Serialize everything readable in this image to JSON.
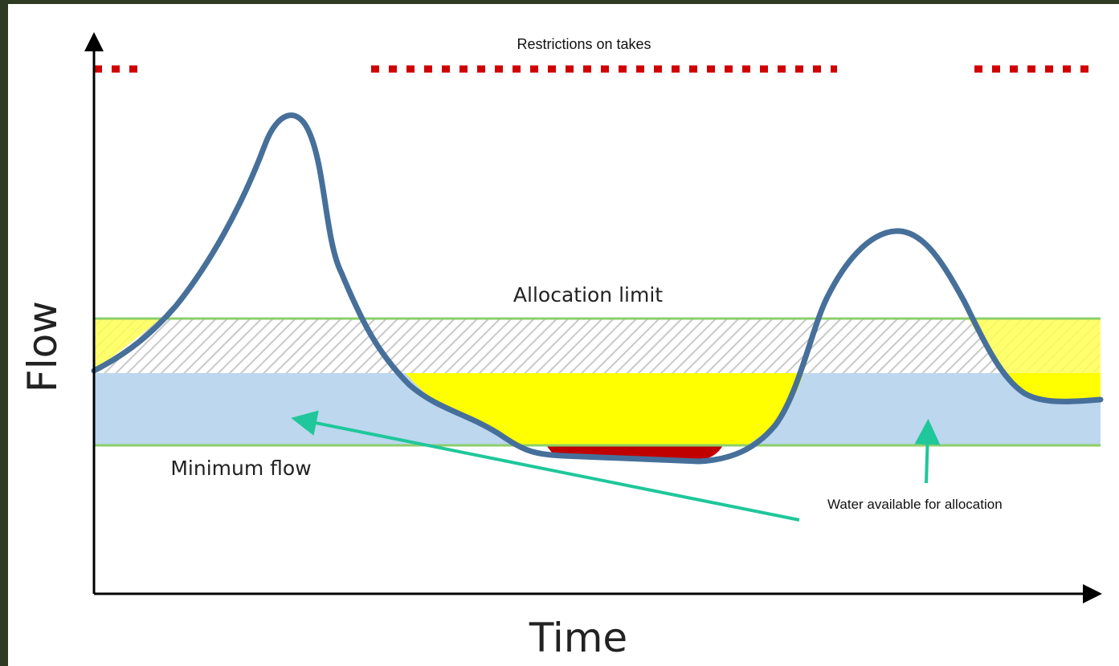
{
  "header": {
    "title": "Restrictions on takes"
  },
  "labels": {
    "allocation_limit": "Allocation limit",
    "minimum_flow": "Minimum flow",
    "y_axis": "Flow",
    "x_axis": "Time"
  },
  "annotation": {
    "text": "Water available for allocation"
  }
}
